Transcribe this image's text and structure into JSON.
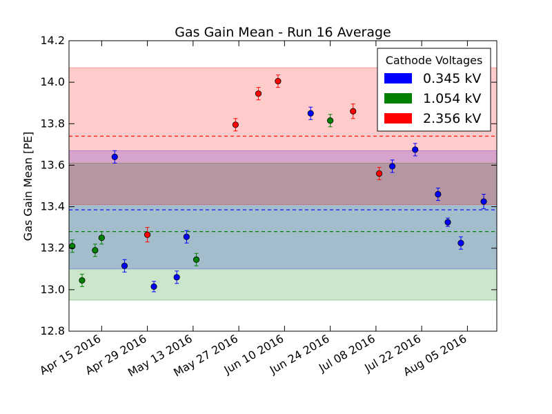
{
  "chart_data": {
    "type": "scatter",
    "title": "Gas Gain Mean - Run 16 Average",
    "xlabel": "",
    "ylabel": "Gas Gain Mean [PE]",
    "xlim": [
      "2016-04-05",
      "2016-08-14"
    ],
    "ylim": [
      12.8,
      14.2
    ],
    "y_ticks": [
      "12.8",
      "13.0",
      "13.2",
      "13.4",
      "13.6",
      "13.8",
      "14.0",
      "14.2"
    ],
    "x_ticks": [
      {
        "date": "2016-04-15",
        "label": "Apr 15 2016"
      },
      {
        "date": "2016-04-29",
        "label": "Apr 29 2016"
      },
      {
        "date": "2016-05-13",
        "label": "May 13 2016"
      },
      {
        "date": "2016-05-27",
        "label": "May 27 2016"
      },
      {
        "date": "2016-06-10",
        "label": "Jun 10 2016"
      },
      {
        "date": "2016-06-24",
        "label": "Jun 24 2016"
      },
      {
        "date": "2016-07-08",
        "label": "Jul 08 2016"
      },
      {
        "date": "2016-07-22",
        "label": "Jul 22 2016"
      },
      {
        "date": "2016-08-05",
        "label": "Aug 05 2016"
      }
    ],
    "grid": false,
    "legend": {
      "title": "Cathode Voltages",
      "placement": "top-right"
    },
    "series": [
      {
        "name": "0.345 kV",
        "color": "#0000ff",
        "mean": 13.385,
        "band": [
          13.1,
          13.67
        ],
        "points": [
          {
            "x": "2016-04-19",
            "y": 13.64,
            "err": 0.03
          },
          {
            "x": "2016-04-22",
            "y": 13.115,
            "err": 0.03
          },
          {
            "x": "2016-05-01",
            "y": 13.015,
            "err": 0.025
          },
          {
            "x": "2016-05-08",
            "y": 13.06,
            "err": 0.03
          },
          {
            "x": "2016-05-11",
            "y": 13.255,
            "err": 0.03
          },
          {
            "x": "2016-06-18",
            "y": 13.85,
            "err": 0.03
          },
          {
            "x": "2016-07-13",
            "y": 13.595,
            "err": 0.03
          },
          {
            "x": "2016-07-20",
            "y": 13.675,
            "err": 0.03
          },
          {
            "x": "2016-07-27",
            "y": 13.46,
            "err": 0.03
          },
          {
            "x": "2016-07-30",
            "y": 13.325,
            "err": 0.02
          },
          {
            "x": "2016-08-03",
            "y": 13.225,
            "err": 0.03
          },
          {
            "x": "2016-08-10",
            "y": 13.425,
            "err": 0.035
          }
        ]
      },
      {
        "name": "1.054 kV",
        "color": "#008000",
        "mean": 13.28,
        "band": [
          12.95,
          13.61
        ],
        "points": [
          {
            "x": "2016-04-06",
            "y": 13.21,
            "err": 0.03
          },
          {
            "x": "2016-04-09",
            "y": 13.045,
            "err": 0.03
          },
          {
            "x": "2016-04-13",
            "y": 13.19,
            "err": 0.03
          },
          {
            "x": "2016-04-15",
            "y": 13.25,
            "err": 0.03
          },
          {
            "x": "2016-05-14",
            "y": 13.145,
            "err": 0.03
          },
          {
            "x": "2016-06-24",
            "y": 13.815,
            "err": 0.03
          }
        ]
      },
      {
        "name": "2.356 kV",
        "color": "#ff0000",
        "mean": 13.74,
        "band": [
          13.41,
          14.07
        ],
        "points": [
          {
            "x": "2016-04-29",
            "y": 13.265,
            "err": 0.035
          },
          {
            "x": "2016-05-26",
            "y": 13.795,
            "err": 0.03
          },
          {
            "x": "2016-06-02",
            "y": 13.945,
            "err": 0.03
          },
          {
            "x": "2016-06-08",
            "y": 14.005,
            "err": 0.03
          },
          {
            "x": "2016-07-01",
            "y": 13.86,
            "err": 0.035
          },
          {
            "x": "2016-07-09",
            "y": 13.56,
            "err": 0.03
          }
        ]
      }
    ]
  }
}
